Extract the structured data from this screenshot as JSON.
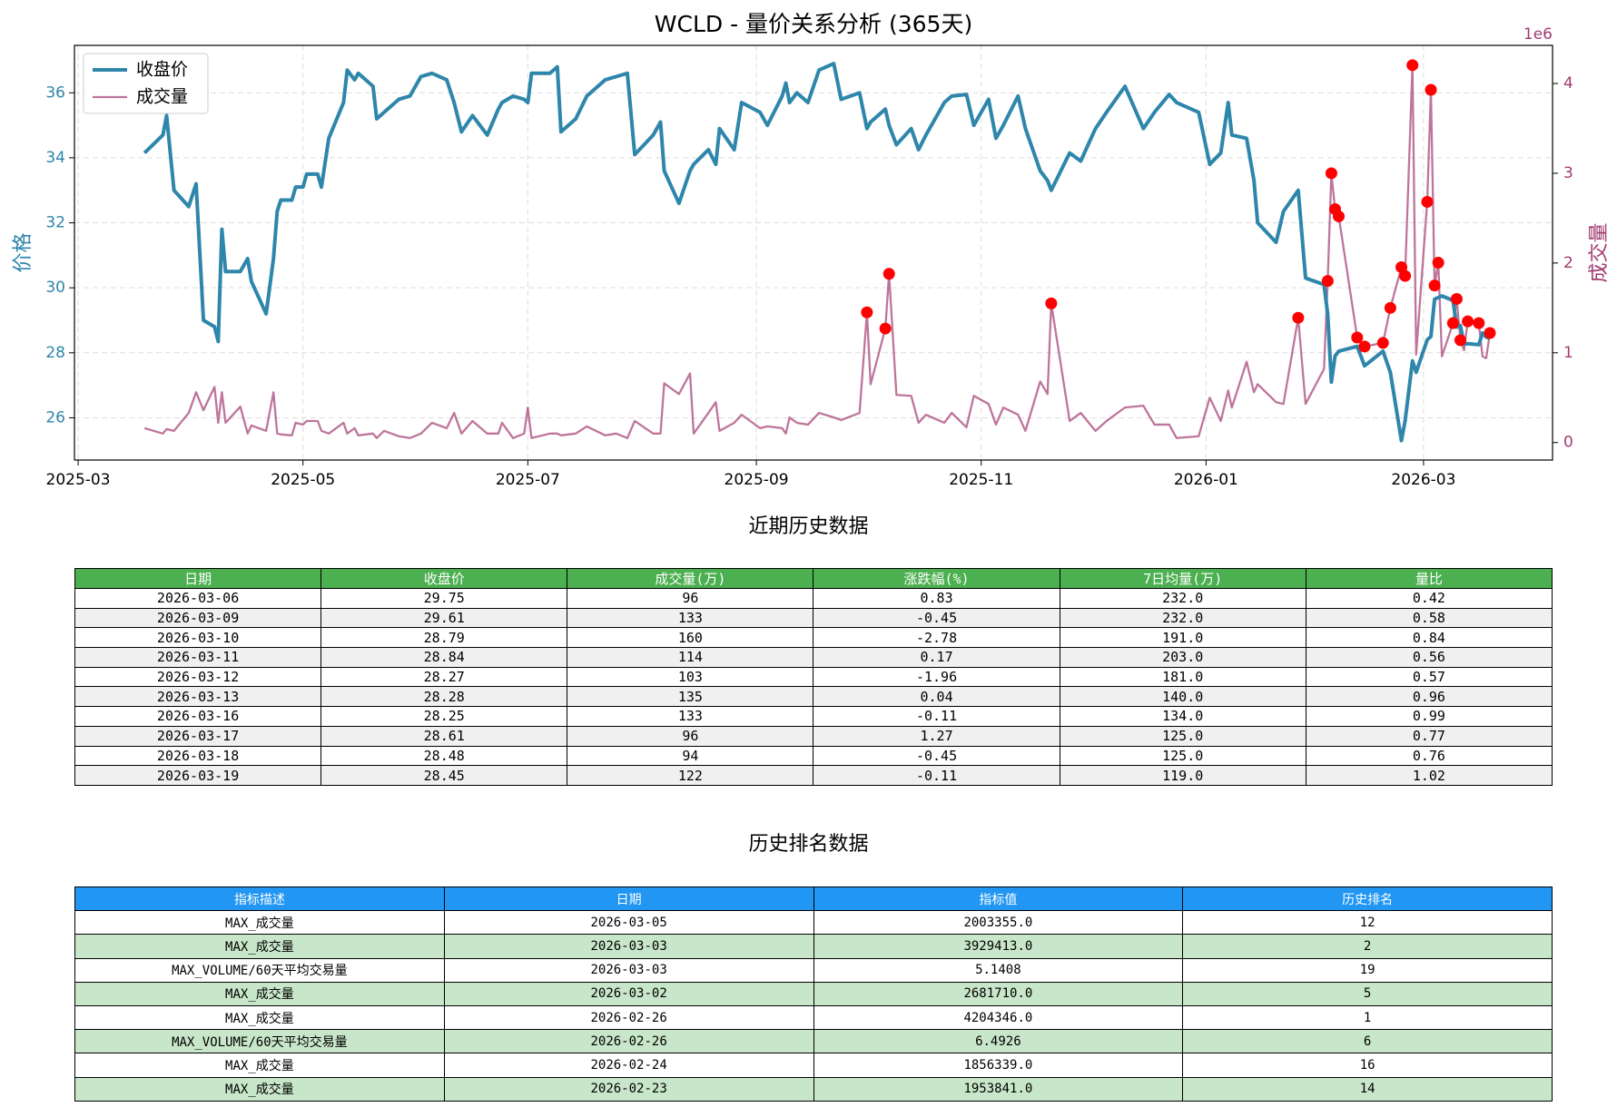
{
  "chart_data": {
    "type": "line",
    "title": "WCLD - 量价关系分析 (365天)",
    "ylabel": "价格",
    "y2label": "成交量",
    "y2_offset_label": "1e6",
    "grid": true,
    "legend": "upper left",
    "xlim": [
      "2025-02-28",
      "2026-04-05"
    ],
    "xticks": [
      {
        "value": "2025-03-01",
        "label": "2025-03"
      },
      {
        "value": "2025-05-01",
        "label": "2025-05"
      },
      {
        "value": "2025-07-01",
        "label": "2025-07"
      },
      {
        "value": "2025-09-01",
        "label": "2025-09"
      },
      {
        "value": "2025-11-01",
        "label": "2025-11"
      },
      {
        "value": "2026-01-01",
        "label": "2026-01"
      },
      {
        "value": "2026-03-01",
        "label": "2026-03"
      }
    ],
    "ylim": [
      24.7,
      37.46
    ],
    "yticks": [
      26,
      28,
      30,
      32,
      34,
      36
    ],
    "y2lim": [
      -195000,
      4425000
    ],
    "y2ticks": [
      0,
      {
        "value": 1000000,
        "label": "1"
      },
      {
        "value": 2000000,
        "label": "2"
      },
      {
        "value": 3000000,
        "label": "3"
      },
      {
        "value": 4000000,
        "label": "4"
      }
    ],
    "x": [
      "2025-03-19",
      "2025-03-24",
      "2025-03-25",
      "2025-03-27",
      "2025-03-31",
      "2025-04-02",
      "2025-04-04",
      "2025-04-07",
      "2025-04-08",
      "2025-04-09",
      "2025-04-10",
      "2025-04-14",
      "2025-04-16",
      "2025-04-17",
      "2025-04-21",
      "2025-04-23",
      "2025-04-24",
      "2025-04-25",
      "2025-04-28",
      "2025-04-29",
      "2025-05-01",
      "2025-05-02",
      "2025-05-05",
      "2025-05-06",
      "2025-05-08",
      "2025-05-12",
      "2025-05-13",
      "2025-05-15",
      "2025-05-16",
      "2025-05-20",
      "2025-05-21",
      "2025-05-23",
      "2025-05-27",
      "2025-05-30",
      "2025-06-02",
      "2025-06-05",
      "2025-06-09",
      "2025-06-11",
      "2025-06-13",
      "2025-06-16",
      "2025-06-20",
      "2025-06-23",
      "2025-06-24",
      "2025-06-27",
      "2025-06-30",
      "2025-07-01",
      "2025-07-02",
      "2025-07-07",
      "2025-07-09",
      "2025-07-10",
      "2025-07-14",
      "2025-07-17",
      "2025-07-22",
      "2025-07-25",
      "2025-07-28",
      "2025-07-30",
      "2025-08-04",
      "2025-08-06",
      "2025-08-07",
      "2025-08-11",
      "2025-08-14",
      "2025-08-15",
      "2025-08-19",
      "2025-08-21",
      "2025-08-22",
      "2025-08-26",
      "2025-08-28",
      "2025-09-02",
      "2025-09-04",
      "2025-09-08",
      "2025-09-09",
      "2025-09-10",
      "2025-09-12",
      "2025-09-15",
      "2025-09-18",
      "2025-09-22",
      "2025-09-24",
      "2025-09-29",
      "2025-10-01",
      "2025-10-02",
      "2025-10-06",
      "2025-10-07",
      "2025-10-09",
      "2025-10-13",
      "2025-10-15",
      "2025-10-17",
      "2025-10-22",
      "2025-10-24",
      "2025-10-28",
      "2025-10-30",
      "2025-11-03",
      "2025-11-05",
      "2025-11-07",
      "2025-11-11",
      "2025-11-13",
      "2025-11-17",
      "2025-11-19",
      "2025-11-20",
      "2025-11-25",
      "2025-11-28",
      "2025-12-02",
      "2025-12-05",
      "2025-12-10",
      "2025-12-15",
      "2025-12-18",
      "2025-12-22",
      "2025-12-24",
      "2025-12-30",
      "2026-01-02",
      "2026-01-05",
      "2026-01-07",
      "2026-01-08",
      "2026-01-12",
      "2026-01-14",
      "2026-01-15",
      "2026-01-20",
      "2026-01-22",
      "2026-01-26",
      "2026-01-28",
      "2026-02-02",
      "2026-02-03",
      "2026-02-04",
      "2026-02-05",
      "2026-02-06",
      "2026-02-11",
      "2026-02-13",
      "2026-02-18",
      "2026-02-20",
      "2026-02-23",
      "2026-02-24",
      "2026-02-26",
      "2026-02-27",
      "2026-03-02",
      "2026-03-03",
      "2026-03-04",
      "2026-03-05",
      "2026-03-06",
      "2026-03-09",
      "2026-03-10",
      "2026-03-11",
      "2026-03-12",
      "2026-03-13",
      "2026-03-16",
      "2026-03-17",
      "2026-03-18",
      "2026-03-19"
    ],
    "series": [
      {
        "name": "收盘价",
        "color": "#2E86AB",
        "axis": "y",
        "values": [
          34.15,
          34.7,
          35.3,
          33.0,
          32.5,
          33.2,
          29.0,
          28.8,
          28.35,
          31.8,
          30.5,
          30.5,
          30.9,
          30.2,
          29.2,
          30.9,
          32.35,
          32.7,
          32.7,
          33.1,
          33.1,
          33.5,
          33.5,
          33.1,
          34.6,
          35.7,
          36.7,
          36.4,
          36.6,
          36.2,
          35.2,
          35.4,
          35.8,
          35.9,
          36.5,
          36.6,
          36.4,
          35.7,
          34.8,
          35.3,
          34.7,
          35.5,
          35.7,
          35.9,
          35.8,
          35.7,
          36.6,
          36.6,
          36.8,
          34.8,
          35.2,
          35.9,
          36.4,
          36.5,
          36.6,
          34.1,
          34.7,
          35.1,
          33.6,
          32.6,
          33.6,
          33.8,
          34.25,
          33.8,
          34.9,
          34.25,
          35.7,
          35.4,
          35.0,
          35.9,
          36.3,
          35.7,
          36.0,
          35.7,
          36.7,
          36.9,
          35.8,
          36.0,
          34.9,
          35.1,
          35.5,
          35.0,
          34.4,
          34.9,
          34.25,
          34.7,
          35.7,
          35.9,
          35.95,
          35.0,
          35.8,
          34.6,
          35.0,
          35.9,
          34.9,
          33.6,
          33.3,
          33.0,
          34.15,
          33.9,
          34.9,
          35.4,
          36.2,
          34.9,
          35.4,
          35.95,
          35.7,
          35.4,
          33.8,
          34.15,
          35.7,
          34.7,
          34.6,
          33.3,
          32.0,
          31.4,
          32.35,
          33.0,
          30.3,
          30.1,
          29.2,
          27.1,
          27.9,
          28.05,
          28.2,
          27.6,
          28.05,
          27.4,
          25.3,
          25.9,
          27.75,
          27.4,
          28.4,
          28.5,
          29.65,
          29.7,
          29.75,
          29.61,
          28.79,
          28.84,
          28.27,
          28.28,
          28.25,
          28.61,
          28.48,
          28.45
        ]
      },
      {
        "name": "成交量",
        "color": "#A23B72",
        "axis": "y2",
        "values": [
          160000,
          100000,
          150000,
          130000,
          330000,
          560000,
          360000,
          620000,
          220000,
          560000,
          220000,
          400000,
          100000,
          190000,
          130000,
          560000,
          100000,
          90000,
          80000,
          220000,
          200000,
          240000,
          240000,
          130000,
          100000,
          220000,
          100000,
          160000,
          80000,
          100000,
          50000,
          130000,
          70000,
          50000,
          100000,
          220000,
          160000,
          330000,
          100000,
          240000,
          100000,
          100000,
          220000,
          50000,
          100000,
          390000,
          50000,
          100000,
          100000,
          80000,
          100000,
          180000,
          80000,
          100000,
          50000,
          240000,
          100000,
          100000,
          660000,
          540000,
          770000,
          100000,
          330000,
          450000,
          130000,
          220000,
          310000,
          160000,
          180000,
          160000,
          100000,
          280000,
          220000,
          200000,
          330000,
          280000,
          250000,
          330000,
          1450000,
          650000,
          1270000,
          1880000,
          530000,
          520000,
          220000,
          310000,
          220000,
          330000,
          170000,
          520000,
          430000,
          200000,
          390000,
          310000,
          130000,
          680000,
          540000,
          1550000,
          240000,
          330000,
          130000,
          240000,
          390000,
          410000,
          200000,
          200000,
          50000,
          70000,
          500000,
          240000,
          580000,
          390000,
          900000,
          560000,
          650000,
          450000,
          430000,
          1390000,
          430000,
          820000,
          1800000,
          3000000,
          2600000,
          2520000,
          1170000,
          1070000,
          1110000,
          1500000,
          1953841,
          1856339,
          4204346,
          980000,
          2681710,
          3929413,
          1750000,
          2003355,
          960000,
          1330000,
          1600000,
          1140000,
          1030000,
          1350000,
          1330000,
          960000,
          940000,
          1220000
        ]
      },
      {
        "color": "#ff0000",
        "axis": "y2",
        "style": "markers",
        "values": [
          null,
          null,
          null,
          null,
          null,
          null,
          null,
          null,
          null,
          null,
          null,
          null,
          null,
          null,
          null,
          null,
          null,
          null,
          null,
          null,
          null,
          null,
          null,
          null,
          null,
          null,
          null,
          null,
          null,
          null,
          null,
          null,
          null,
          null,
          null,
          null,
          null,
          null,
          null,
          null,
          null,
          null,
          null,
          null,
          null,
          null,
          null,
          null,
          null,
          null,
          null,
          null,
          null,
          null,
          null,
          null,
          null,
          null,
          null,
          null,
          null,
          null,
          null,
          null,
          null,
          null,
          null,
          null,
          null,
          null,
          null,
          null,
          null,
          null,
          null,
          null,
          null,
          null,
          1450000,
          null,
          1270000,
          1880000,
          null,
          null,
          null,
          null,
          null,
          null,
          null,
          null,
          null,
          null,
          null,
          null,
          null,
          null,
          null,
          1550000,
          null,
          null,
          null,
          null,
          null,
          null,
          null,
          null,
          null,
          null,
          null,
          null,
          null,
          null,
          null,
          null,
          null,
          null,
          null,
          1390000,
          null,
          null,
          1800000,
          3000000,
          2600000,
          2520000,
          1170000,
          1070000,
          1110000,
          1500000,
          1953841,
          1856339,
          4204346,
          null,
          2681710,
          3929413,
          1750000,
          2003355,
          null,
          1330000,
          1600000,
          1140000,
          null,
          1350000,
          1330000,
          null,
          null,
          1220000
        ]
      }
    ]
  },
  "tables": [
    {
      "title": "近期历史数据",
      "header_color": "#4CAF50",
      "stripe_color": "#f0f0f0",
      "columns": [
        "日期",
        "收盘价",
        "成交量(万)",
        "涨跌幅(%)",
        "7日均量(万)",
        "量比"
      ],
      "rows": [
        [
          "2026-03-06",
          "29.75",
          "96",
          "0.83",
          "232.0",
          "0.42"
        ],
        [
          "2026-03-09",
          "29.61",
          "133",
          "-0.45",
          "232.0",
          "0.58"
        ],
        [
          "2026-03-10",
          "28.79",
          "160",
          "-2.78",
          "191.0",
          "0.84"
        ],
        [
          "2026-03-11",
          "28.84",
          "114",
          "0.17",
          "203.0",
          "0.56"
        ],
        [
          "2026-03-12",
          "28.27",
          "103",
          "-1.96",
          "181.0",
          "0.57"
        ],
        [
          "2026-03-13",
          "28.28",
          "135",
          "0.04",
          "140.0",
          "0.96"
        ],
        [
          "2026-03-16",
          "28.25",
          "133",
          "-0.11",
          "134.0",
          "0.99"
        ],
        [
          "2026-03-17",
          "28.61",
          "96",
          "1.27",
          "125.0",
          "0.77"
        ],
        [
          "2026-03-18",
          "28.48",
          "94",
          "-0.45",
          "125.0",
          "0.76"
        ],
        [
          "2026-03-19",
          "28.45",
          "122",
          "-0.11",
          "119.0",
          "1.02"
        ]
      ]
    },
    {
      "title": "历史排名数据",
      "header_color": "#2196F3",
      "stripe_color": "#C8E6C9",
      "columns": [
        "指标描述",
        "日期",
        "指标值",
        "历史排名"
      ],
      "rows": [
        [
          "MAX_成交量",
          "2026-03-05",
          "2003355.0",
          "12"
        ],
        [
          "MAX_成交量",
          "2026-03-03",
          "3929413.0",
          "2"
        ],
        [
          "MAX_VOLUME/60天平均交易量",
          "2026-03-03",
          "5.1408",
          "19"
        ],
        [
          "MAX_成交量",
          "2026-03-02",
          "2681710.0",
          "5"
        ],
        [
          "MAX_成交量",
          "2026-02-26",
          "4204346.0",
          "1"
        ],
        [
          "MAX_VOLUME/60天平均交易量",
          "2026-02-26",
          "6.4926",
          "6"
        ],
        [
          "MAX_成交量",
          "2026-02-24",
          "1856339.0",
          "16"
        ],
        [
          "MAX_成交量",
          "2026-02-23",
          "1953841.0",
          "14"
        ]
      ]
    }
  ]
}
